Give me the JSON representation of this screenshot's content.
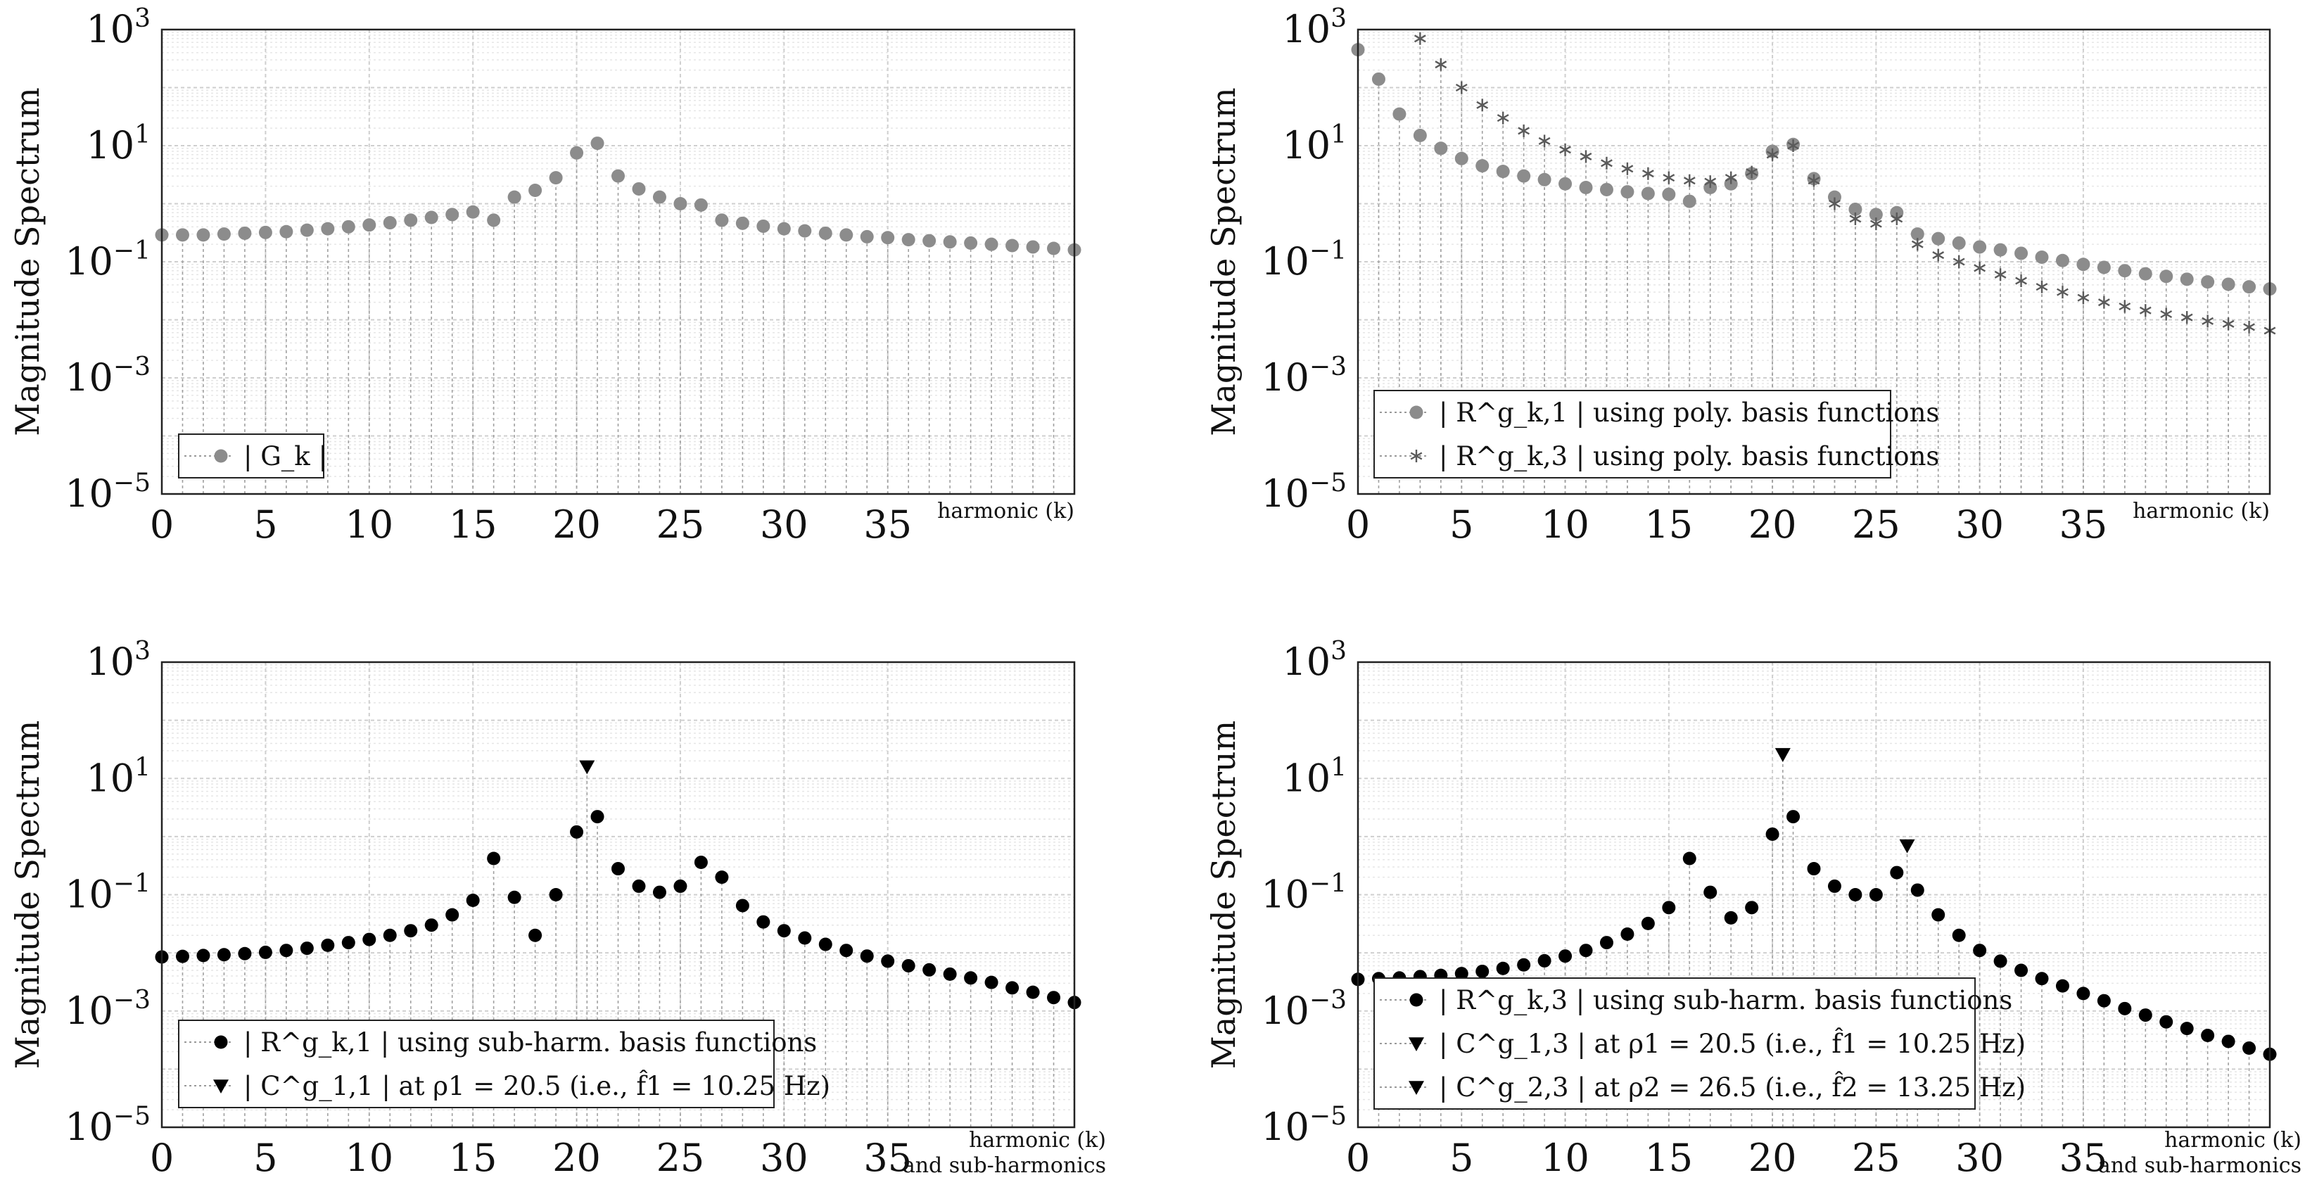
{
  "chart_data": [
    {
      "type": "scatter",
      "id": "top-left",
      "xlabel_lines": [
        "harmonic (k)"
      ],
      "ylabel": "Magnitude Spectrum",
      "xlim": [
        0,
        44
      ],
      "ylim_log10": [
        -5,
        3
      ],
      "x_ticks": [
        0,
        5,
        10,
        15,
        20,
        25,
        30,
        35
      ],
      "y_ticks_exp": [
        -5,
        -3,
        -1,
        1,
        3
      ],
      "y_tick_labels": [
        "10⁻⁵",
        "10⁻³",
        "10⁻¹",
        "10¹",
        "10³"
      ],
      "series": [
        {
          "name": "|G_k|",
          "label": "| G_k |",
          "marker": "circle",
          "color": "#8c8c8c",
          "x": [
            0,
            1,
            2,
            3,
            4,
            5,
            6,
            7,
            8,
            9,
            10,
            11,
            12,
            13,
            14,
            15,
            16,
            17,
            18,
            19,
            20,
            21,
            22,
            23,
            24,
            25,
            26,
            27,
            28,
            29,
            30,
            31,
            32,
            33,
            34,
            35,
            36,
            37,
            38,
            39,
            40,
            41,
            42,
            43,
            44
          ],
          "y": [
            0.29,
            0.29,
            0.29,
            0.3,
            0.31,
            0.32,
            0.33,
            0.35,
            0.37,
            0.4,
            0.43,
            0.47,
            0.52,
            0.58,
            0.65,
            0.72,
            0.52,
            1.3,
            1.7,
            2.8,
            7.5,
            11.0,
            3.0,
            1.8,
            1.3,
            1.0,
            0.95,
            0.52,
            0.46,
            0.41,
            0.37,
            0.34,
            0.31,
            0.29,
            0.27,
            0.26,
            0.24,
            0.23,
            0.22,
            0.21,
            0.2,
            0.19,
            0.18,
            0.17,
            0.16
          ]
        }
      ]
    },
    {
      "type": "scatter",
      "id": "top-right",
      "xlabel_lines": [
        "harmonic (k)"
      ],
      "ylabel": "Magnitude Spectrum",
      "xlim": [
        0,
        44
      ],
      "ylim_log10": [
        -5,
        3
      ],
      "x_ticks": [
        0,
        5,
        10,
        15,
        20,
        25,
        30,
        35
      ],
      "y_ticks_exp": [
        -5,
        -3,
        -1,
        1,
        3
      ],
      "y_tick_labels": [
        "10⁻⁵",
        "10⁻³",
        "10⁻¹",
        "10¹",
        "10³"
      ],
      "series": [
        {
          "name": "|R^g_k,1|",
          "label": "| R^g_k,1 |  using poly. basis functions",
          "marker": "circle",
          "color": "#8c8c8c",
          "x": [
            0,
            1,
            2,
            3,
            4,
            5,
            6,
            7,
            8,
            9,
            10,
            11,
            12,
            13,
            14,
            15,
            16,
            17,
            18,
            19,
            20,
            21,
            22,
            23,
            24,
            25,
            26,
            27,
            28,
            29,
            30,
            31,
            32,
            33,
            34,
            35,
            36,
            37,
            38,
            39,
            40,
            41,
            42,
            43,
            44
          ],
          "y": [
            450,
            140,
            35,
            15,
            9,
            6,
            4.5,
            3.6,
            3.0,
            2.6,
            2.2,
            1.9,
            1.75,
            1.6,
            1.5,
            1.45,
            1.1,
            1.9,
            2.2,
            3.3,
            8,
            10.5,
            2.7,
            1.3,
            0.8,
            0.65,
            0.7,
            0.3,
            0.25,
            0.21,
            0.18,
            0.16,
            0.14,
            0.12,
            0.105,
            0.09,
            0.08,
            0.07,
            0.062,
            0.056,
            0.05,
            0.045,
            0.041,
            0.037,
            0.034
          ]
        },
        {
          "name": "|R^g_k,3|",
          "label": "| R^g_k,3 |  using poly. basis functions",
          "marker": "asterisk",
          "color": "#5a5a5a",
          "x": [
            3,
            4,
            5,
            6,
            7,
            8,
            9,
            10,
            11,
            12,
            13,
            14,
            15,
            16,
            17,
            18,
            19,
            20,
            21,
            22,
            23,
            24,
            25,
            26,
            27,
            28,
            29,
            30,
            31,
            32,
            33,
            34,
            35,
            36,
            37,
            38,
            39,
            40,
            41,
            42,
            43,
            44
          ],
          "y": [
            700,
            250,
            100,
            50,
            30,
            18,
            12,
            8.5,
            6.5,
            5,
            4,
            3.3,
            2.8,
            2.5,
            2.4,
            2.8,
            3.5,
            7,
            10,
            2.5,
            1.0,
            0.55,
            0.45,
            0.55,
            0.2,
            0.13,
            0.1,
            0.078,
            0.06,
            0.047,
            0.037,
            0.03,
            0.024,
            0.02,
            0.017,
            0.0145,
            0.0125,
            0.011,
            0.0095,
            0.0085,
            0.0075,
            0.0065
          ]
        }
      ]
    },
    {
      "type": "scatter",
      "id": "bottom-left",
      "xlabel_lines": [
        "harmonic (k)",
        "and sub-harmonics"
      ],
      "ylabel": "Magnitude Spectrum",
      "xlim": [
        0,
        44
      ],
      "ylim_log10": [
        -5,
        3
      ],
      "x_ticks": [
        0,
        5,
        10,
        15,
        20,
        25,
        30,
        35
      ],
      "y_ticks_exp": [
        -5,
        -3,
        -1,
        1,
        3
      ],
      "y_tick_labels": [
        "10⁻⁵",
        "10⁻³",
        "10⁻¹",
        "10¹",
        "10³"
      ],
      "series": [
        {
          "name": "|R^g_k,1|",
          "label": "| R^g_k,1 |  using sub-harm. basis functions",
          "marker": "circle",
          "color": "#000000",
          "x": [
            0,
            1,
            2,
            3,
            4,
            5,
            6,
            7,
            8,
            9,
            10,
            11,
            12,
            13,
            14,
            15,
            16,
            17,
            18,
            19,
            20,
            21,
            22,
            23,
            24,
            25,
            26,
            27,
            28,
            29,
            30,
            31,
            32,
            33,
            34,
            35,
            36,
            37,
            38,
            39,
            40,
            41,
            42,
            43,
            44
          ],
          "y": [
            0.0085,
            0.0087,
            0.009,
            0.0093,
            0.0097,
            0.0102,
            0.011,
            0.012,
            0.0135,
            0.015,
            0.017,
            0.02,
            0.024,
            0.03,
            0.045,
            0.08,
            0.42,
            0.09,
            0.02,
            0.1,
            1.2,
            2.2,
            0.28,
            0.14,
            0.11,
            0.14,
            0.36,
            0.2,
            0.065,
            0.034,
            0.024,
            0.018,
            0.014,
            0.011,
            0.0088,
            0.0072,
            0.006,
            0.0051,
            0.0043,
            0.0037,
            0.0031,
            0.0025,
            0.0021,
            0.0017,
            0.0014
          ]
        },
        {
          "name": "|C^g_1,1|",
          "label": "| C^g_1,1 |  at ρ1 = 20.5 (i.e., f̂1 = 10.25 Hz)",
          "marker": "triangle-down",
          "color": "#000000",
          "x": [
            20.5
          ],
          "y": [
            16
          ]
        }
      ]
    },
    {
      "type": "scatter",
      "id": "bottom-right",
      "xlabel_lines": [
        "harmonic (k)",
        "and sub-harmonics"
      ],
      "ylabel": "Magnitude Spectrum",
      "xlim": [
        0,
        44
      ],
      "ylim_log10": [
        -5,
        3
      ],
      "x_ticks": [
        0,
        5,
        10,
        15,
        20,
        25,
        30,
        35
      ],
      "y_ticks_exp": [
        -5,
        -3,
        -1,
        1,
        3
      ],
      "y_tick_labels": [
        "10⁻⁵",
        "10⁻³",
        "10⁻¹",
        "10¹",
        "10³"
      ],
      "series": [
        {
          "name": "|R^g_k,3|",
          "label": "| R^g_k,3 |  using sub-harm. basis functions",
          "marker": "circle",
          "color": "#000000",
          "x": [
            0,
            1,
            2,
            3,
            4,
            5,
            6,
            7,
            8,
            9,
            10,
            11,
            12,
            13,
            14,
            15,
            16,
            17,
            18,
            19,
            20,
            21,
            22,
            23,
            24,
            25,
            26,
            27,
            28,
            29,
            30,
            31,
            32,
            33,
            34,
            35,
            36,
            37,
            38,
            39,
            40,
            41,
            42,
            43,
            44
          ],
          "y": [
            0.0035,
            0.0036,
            0.0037,
            0.0039,
            0.0041,
            0.0044,
            0.0048,
            0.0054,
            0.0062,
            0.0073,
            0.0088,
            0.011,
            0.015,
            0.021,
            0.032,
            0.06,
            0.42,
            0.11,
            0.04,
            0.06,
            1.1,
            2.2,
            0.28,
            0.14,
            0.1,
            0.1,
            0.24,
            0.12,
            0.045,
            0.02,
            0.011,
            0.0072,
            0.005,
            0.0036,
            0.0027,
            0.002,
            0.0015,
            0.0011,
            0.00085,
            0.00065,
            0.0005,
            0.00038,
            0.0003,
            0.00023,
            0.00018
          ]
        },
        {
          "name": "|C^g_1,3|",
          "label": "| C^g_1,3 |  at ρ1 = 20.5 (i.e., f̂1 = 10.25 Hz)",
          "marker": "triangle-down",
          "color": "#000000",
          "x": [
            20.5
          ],
          "y": [
            26
          ]
        },
        {
          "name": "|C^g_2,3|",
          "label": "| C^g_2,3 |  at ρ2 = 26.5 (i.e., f̂2 = 13.25 Hz)",
          "marker": "triangle-down",
          "color": "#000000",
          "x": [
            26.5
          ],
          "y": [
            0.7
          ]
        }
      ]
    }
  ]
}
